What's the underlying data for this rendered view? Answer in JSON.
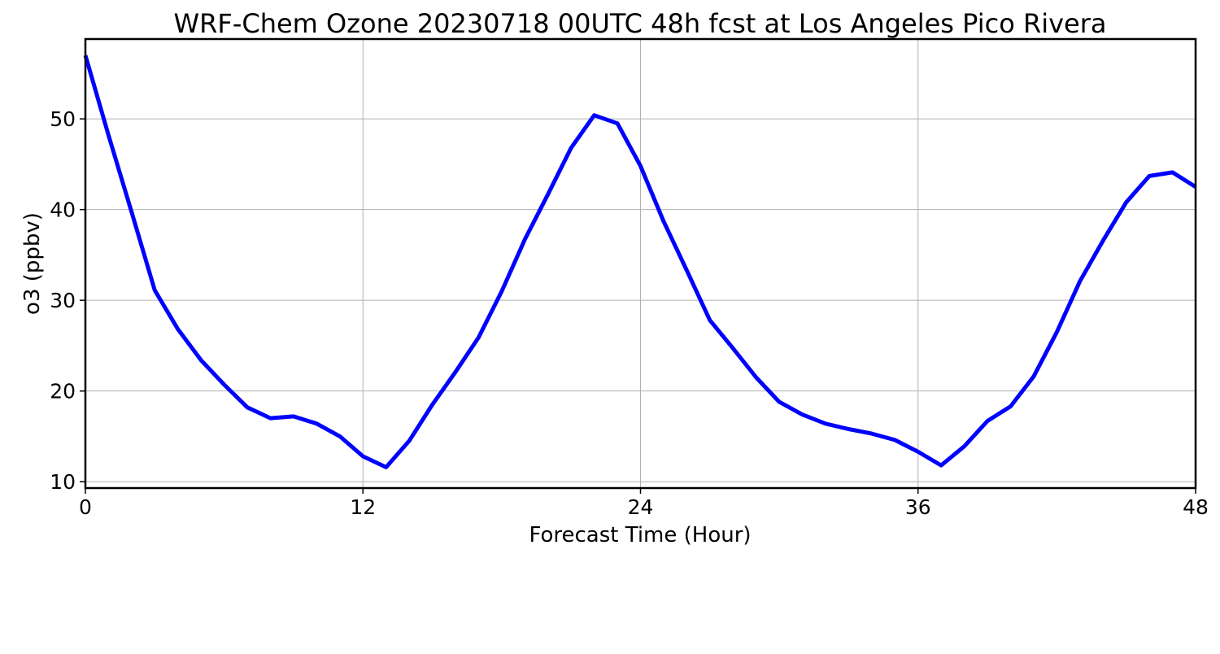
{
  "chart_data": {
    "type": "line",
    "title": "WRF-Chem Ozone  20230718 00UTC 48h fcst at Los Angeles Pico Rivera",
    "xlabel": "Forecast Time (Hour)",
    "ylabel": "o3  (ppbv)",
    "xlim": [
      0,
      48
    ],
    "ylim": [
      9.3,
      58.8
    ],
    "xticks": [
      0,
      12,
      24,
      36,
      48
    ],
    "yticks": [
      10,
      20,
      30,
      40,
      50
    ],
    "grid": true,
    "line_color": "#0000ff",
    "grid_color": "#b0b0b0",
    "series": [
      {
        "x": [
          0,
          1,
          2,
          3,
          4,
          5,
          6,
          7,
          8,
          9,
          10,
          11,
          12,
          13,
          14,
          15,
          16,
          17,
          18,
          19,
          20,
          21,
          22,
          23,
          24,
          25,
          26,
          27,
          28,
          29,
          30,
          31,
          32,
          33,
          34,
          35,
          36,
          37,
          38,
          39,
          40,
          41,
          42,
          43,
          44,
          45,
          46,
          47,
          48
        ],
        "values": [
          57.0,
          48.2,
          39.7,
          31.1,
          26.8,
          23.4,
          20.7,
          18.2,
          17.0,
          17.2,
          16.4,
          15.0,
          12.8,
          11.6,
          14.5,
          18.5,
          22.1,
          25.9,
          31.0,
          36.7,
          41.7,
          46.8,
          50.4,
          49.5,
          44.8,
          38.7,
          33.3,
          27.8,
          24.7,
          21.5,
          18.8,
          17.4,
          16.4,
          15.8,
          15.3,
          14.6,
          13.3,
          11.8,
          13.9,
          16.7,
          18.3,
          21.6,
          26.5,
          32.1,
          36.6,
          40.8,
          43.7,
          44.1,
          42.5
        ]
      }
    ]
  }
}
